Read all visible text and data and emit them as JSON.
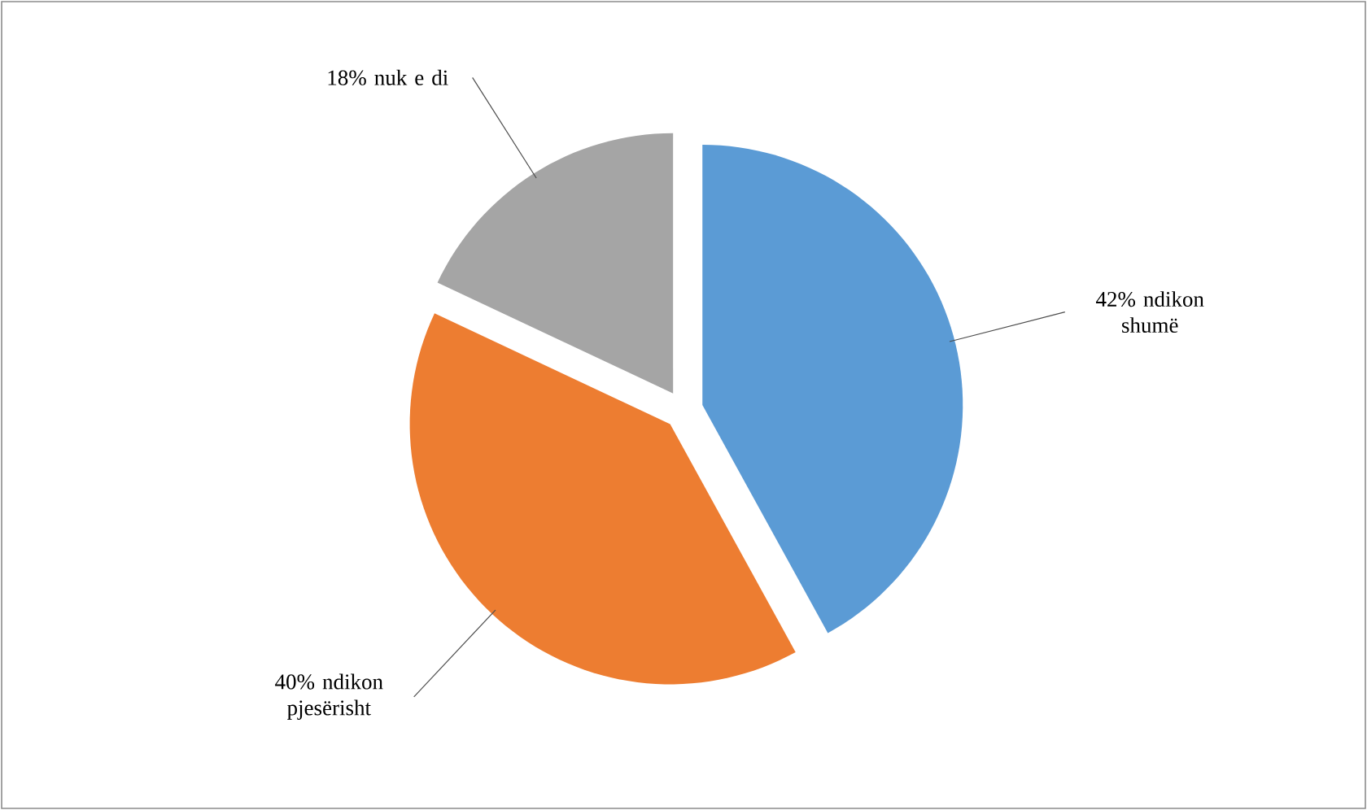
{
  "chart_data": {
    "type": "pie",
    "categories": [
      "ndikon shumë",
      "ndikon pjesërisht",
      "nuk e di"
    ],
    "values": [
      42,
      40,
      18
    ],
    "value_labels": [
      "42%",
      "40%",
      "18%"
    ],
    "colors": [
      "#5b9bd5",
      "#ed7d31",
      "#a5a5a5"
    ]
  }
}
